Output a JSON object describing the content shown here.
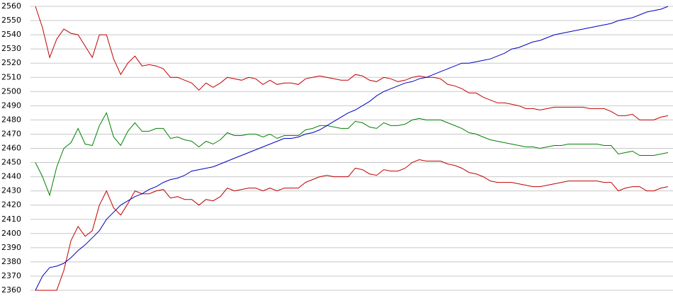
{
  "chart_data": {
    "type": "line",
    "ylim": [
      2360,
      2560
    ],
    "yticks": [
      2360,
      2370,
      2380,
      2390,
      2400,
      2410,
      2420,
      2430,
      2440,
      2450,
      2460,
      2470,
      2480,
      2490,
      2500,
      2510,
      2520,
      2530,
      2540,
      2550,
      2560
    ],
    "grid": true,
    "series": [
      {
        "color": "#c00000",
        "values": [
          2560,
          2545,
          2524,
          2537,
          2544,
          2541,
          2540,
          2532,
          2524,
          2540,
          2540,
          2523,
          2512,
          2520,
          2525,
          2518,
          2519,
          2518,
          2516,
          2510,
          2510,
          2508,
          2506,
          2501,
          2506,
          2503,
          2506,
          2510,
          2509,
          2508,
          2510,
          2509,
          2505,
          2508,
          2505,
          2506,
          2506,
          2505,
          2509,
          2510,
          2511,
          2510,
          2509,
          2508,
          2508,
          2512,
          2511,
          2508,
          2507,
          2510,
          2509,
          2507,
          2508,
          2510,
          2511,
          2510,
          2510,
          2509,
          2505,
          2504,
          2502,
          2499,
          2499,
          2496,
          2494,
          2492,
          2492,
          2491,
          2490,
          2488,
          2488,
          2487,
          2488,
          2489,
          2489,
          2489,
          2489,
          2489,
          2488,
          2488,
          2488,
          2486,
          2483,
          2483,
          2484,
          2480,
          2480,
          2480,
          2482,
          2483
        ]
      },
      {
        "color": "#008000",
        "values": [
          2450,
          2440,
          2427,
          2447,
          2460,
          2464,
          2474,
          2463,
          2462,
          2476,
          2485,
          2468,
          2462,
          2472,
          2478,
          2472,
          2472,
          2474,
          2474,
          2467,
          2468,
          2466,
          2465,
          2461,
          2465,
          2463,
          2466,
          2471,
          2469,
          2469,
          2470,
          2470,
          2468,
          2470,
          2467,
          2469,
          2469,
          2469,
          2473,
          2474,
          2476,
          2476,
          2475,
          2474,
          2474,
          2479,
          2478,
          2475,
          2474,
          2478,
          2476,
          2476,
          2477,
          2480,
          2481,
          2480,
          2480,
          2480,
          2478,
          2476,
          2474,
          2471,
          2470,
          2468,
          2466,
          2465,
          2464,
          2463,
          2462,
          2461,
          2461,
          2460,
          2461,
          2462,
          2462,
          2463,
          2463,
          2463,
          2463,
          2463,
          2462,
          2462,
          2456,
          2457,
          2458,
          2455,
          2455,
          2455,
          2456,
          2457
        ]
      },
      {
        "color": "#c00000",
        "values": [
          2360,
          2360,
          2360,
          2360,
          2374,
          2395,
          2405,
          2398,
          2402,
          2420,
          2430,
          2418,
          2413,
          2421,
          2430,
          2428,
          2428,
          2430,
          2431,
          2425,
          2426,
          2424,
          2424,
          2420,
          2424,
          2423,
          2426,
          2432,
          2430,
          2431,
          2432,
          2432,
          2430,
          2432,
          2430,
          2432,
          2432,
          2432,
          2436,
          2438,
          2440,
          2441,
          2440,
          2440,
          2440,
          2446,
          2445,
          2442,
          2441,
          2445,
          2444,
          2444,
          2446,
          2450,
          2452,
          2451,
          2451,
          2451,
          2449,
          2448,
          2446,
          2443,
          2442,
          2440,
          2437,
          2436,
          2436,
          2436,
          2435,
          2434,
          2433,
          2433,
          2434,
          2435,
          2436,
          2437,
          2437,
          2437,
          2437,
          2437,
          2436,
          2436,
          2430,
          2432,
          2433,
          2433,
          2430,
          2430,
          2432,
          2433
        ]
      },
      {
        "color": "#0000c0",
        "values": [
          2360,
          2370,
          2376,
          2377,
          2379,
          2383,
          2388,
          2392,
          2397,
          2402,
          2410,
          2415,
          2420,
          2423,
          2426,
          2428,
          2431,
          2433,
          2436,
          2438,
          2439,
          2441,
          2444,
          2445,
          2446,
          2447,
          2449,
          2451,
          2453,
          2455,
          2457,
          2459,
          2461,
          2463,
          2465,
          2467,
          2467,
          2468,
          2470,
          2471,
          2473,
          2476,
          2479,
          2482,
          2485,
          2487,
          2490,
          2493,
          2497,
          2500,
          2502,
          2504,
          2506,
          2507,
          2509,
          2510,
          2512,
          2514,
          2516,
          2518,
          2520,
          2520,
          2521,
          2522,
          2523,
          2525,
          2527,
          2530,
          2531,
          2533,
          2535,
          2536,
          2538,
          2540,
          2541,
          2542,
          2543,
          2544,
          2545,
          2546,
          2547,
          2548,
          2550,
          2551,
          2552,
          2554,
          2556,
          2557,
          2558,
          2560
        ]
      }
    ]
  }
}
